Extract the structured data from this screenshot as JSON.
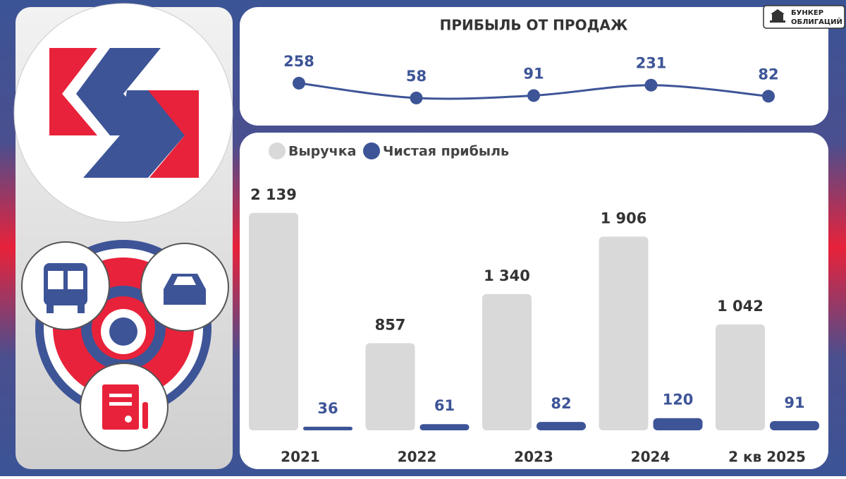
{
  "header": {
    "brand": [
      "БУНКЕР",
      "ОБЛИГАЦИЙ"
    ]
  },
  "chart_data": [
    {
      "type": "line",
      "title": "ПРИБЫЛЬ ОТ ПРОДАЖ",
      "values": [
        258,
        58,
        91,
        231,
        82
      ],
      "color": "#3d5497",
      "ylim": [
        0,
        300
      ]
    },
    {
      "type": "bar",
      "categories": [
        "2021",
        "2022",
        "2023",
        "2024",
        "2 кв 2025"
      ],
      "series": [
        {
          "name": "Выручка",
          "color": "#d9d9d9",
          "values": [
            2139,
            857,
            1340,
            1906,
            1042
          ],
          "value_labels": [
            "2 139",
            "857",
            "1 340",
            "1 906",
            "1 042"
          ]
        },
        {
          "name": "Чистая прибыль",
          "color": "#3d5497",
          "values": [
            36,
            61,
            82,
            120,
            91
          ]
        }
      ],
      "ylim": [
        0,
        2200
      ]
    }
  ]
}
